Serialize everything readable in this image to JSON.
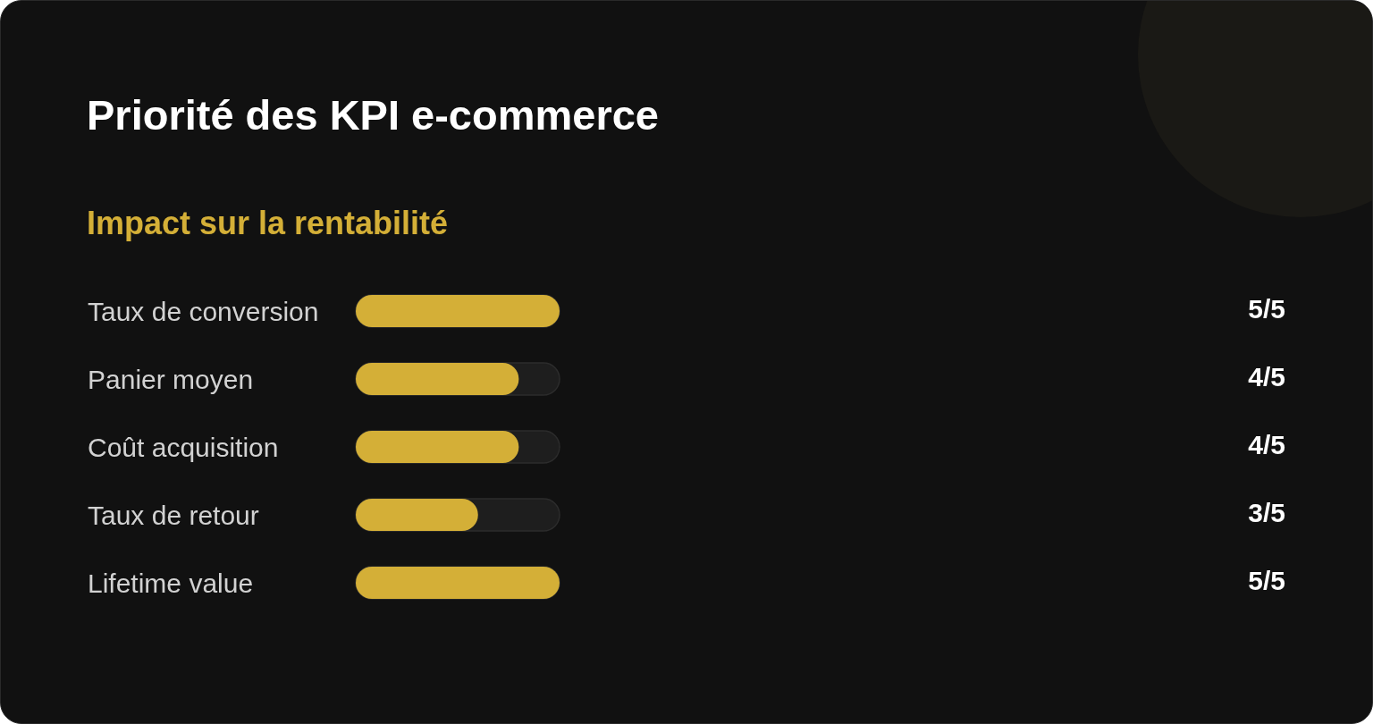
{
  "chart_data": {
    "type": "bar",
    "orientation": "horizontal",
    "title": "Priorité des KPI e-commerce",
    "subtitle": "Impact sur la rentabilité",
    "categories": [
      "Taux de conversion",
      "Panier moyen",
      "Coût acquisition",
      "Taux de retour",
      "Lifetime value"
    ],
    "values": [
      1,
      0.8,
      0.8,
      0.6,
      1
    ],
    "value_labels": [
      "5/5",
      "4/5",
      "4/5",
      "3/5",
      "5/5"
    ],
    "color": "#d4af37",
    "xlim": [
      0,
      1
    ],
    "tick_labels": "y"
  }
}
